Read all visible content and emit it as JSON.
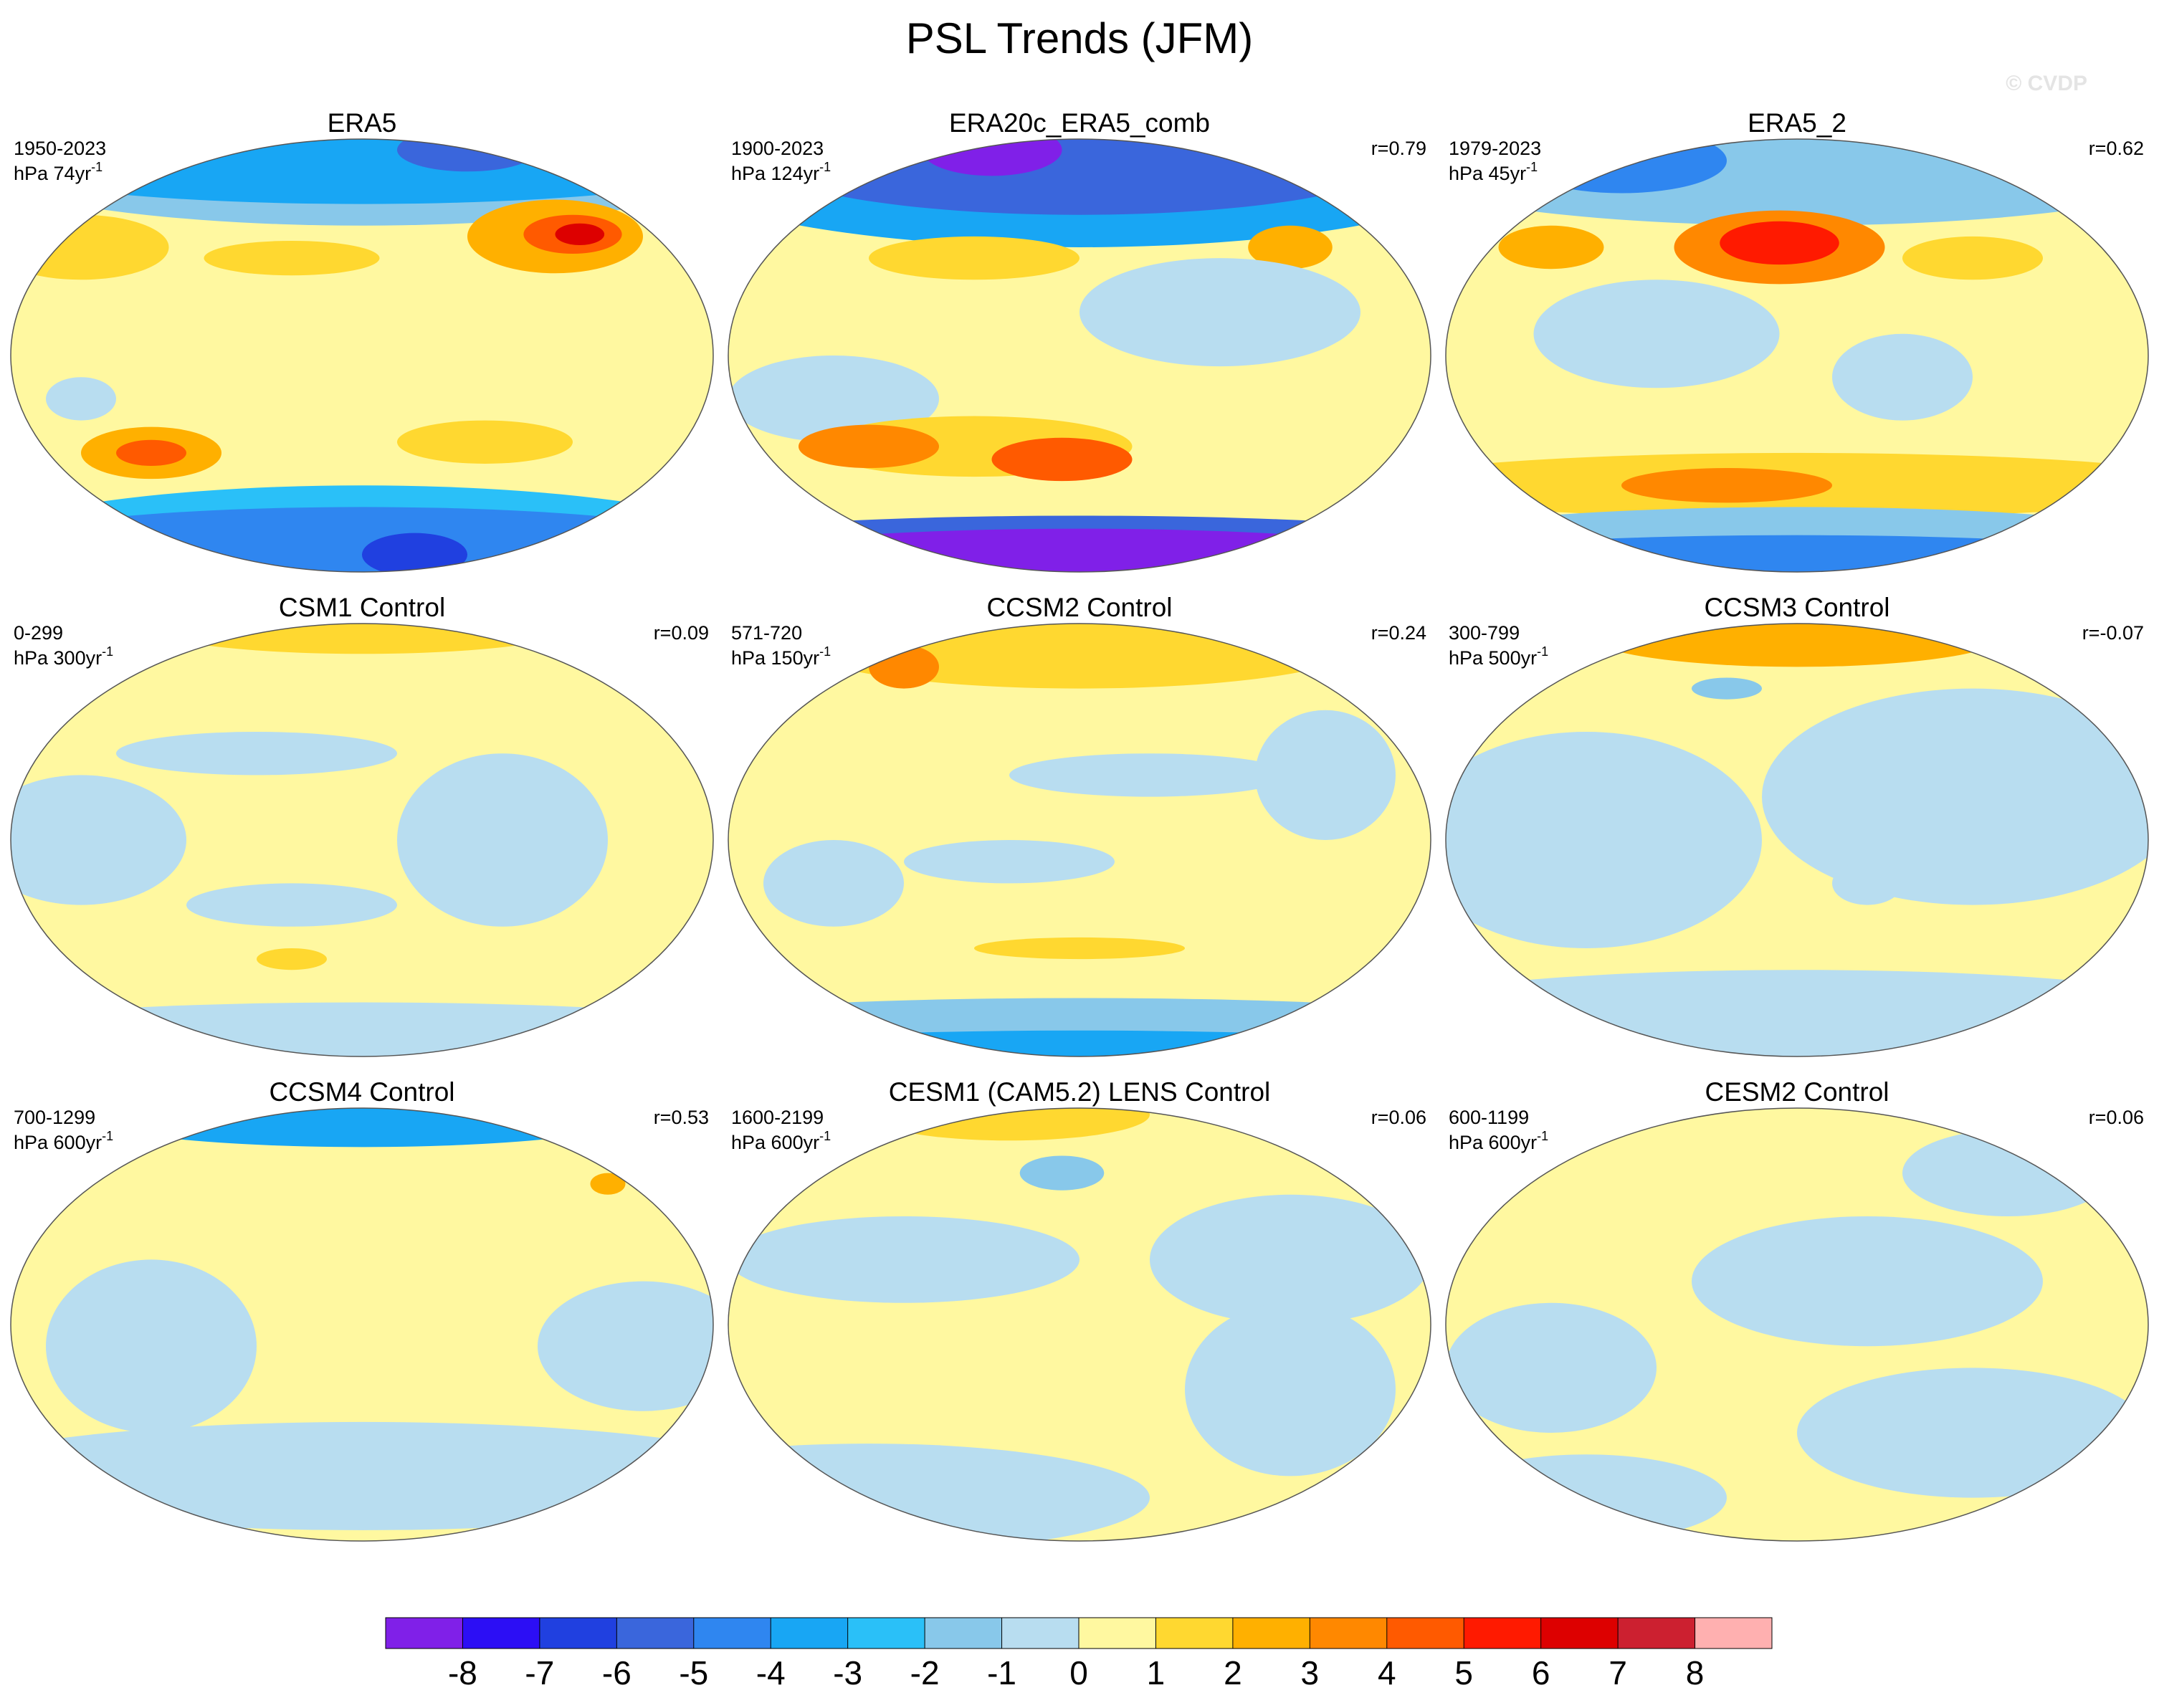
{
  "title": "PSL Trends (JFM)",
  "watermark": "© CVDP",
  "panels": [
    {
      "title": "ERA5",
      "period": "1950-2023",
      "units": "hPa 74yr",
      "units_exp": "-1"
    },
    {
      "title": "ERA20c_ERA5_comb",
      "period": "1900-2023",
      "units": "hPa 124yr",
      "units_exp": "-1",
      "r": "r=0.79"
    },
    {
      "title": "ERA5_2",
      "period": "1979-2023",
      "units": "hPa 45yr",
      "units_exp": "-1",
      "r": "r=0.62"
    },
    {
      "title": "CSM1 Control",
      "period": "0-299",
      "units": "hPa 300yr",
      "units_exp": "-1",
      "r": "r=0.09"
    },
    {
      "title": "CCSM2 Control",
      "period": "571-720",
      "units": "hPa 150yr",
      "units_exp": "-1",
      "r": "r=0.24"
    },
    {
      "title": "CCSM3 Control",
      "period": "300-799",
      "units": "hPa 500yr",
      "units_exp": "-1",
      "r": "r=-0.07"
    },
    {
      "title": "CCSM4 Control",
      "period": "700-1299",
      "units": "hPa 600yr",
      "units_exp": "-1",
      "r": "r=0.53"
    },
    {
      "title": "CESM1 (CAM5.2) LENS Control",
      "period": "1600-2199",
      "units": "hPa 600yr",
      "units_exp": "-1",
      "r": "r=0.06"
    },
    {
      "title": "CESM2 Control",
      "period": "600-1199",
      "units": "hPa 600yr",
      "units_exp": "-1",
      "r": "r=0.06"
    }
  ],
  "colorbar": {
    "colors": [
      "#8020e8",
      "#2c0ef5",
      "#2040e0",
      "#3a66dc",
      "#2f86f0",
      "#18a6f4",
      "#2ac0f8",
      "#88c8ea",
      "#b8ddf0",
      "#fff8a0",
      "#ffd830",
      "#ffb000",
      "#ff8800",
      "#ff5a00",
      "#ff1a00",
      "#dd0000",
      "#cc2030",
      "#ffb0b0"
    ],
    "ticks": [
      -8,
      -7,
      -6,
      -5,
      -4,
      -3,
      -2,
      -1,
      0,
      1,
      2,
      3,
      4,
      5,
      6,
      7,
      8
    ]
  }
}
